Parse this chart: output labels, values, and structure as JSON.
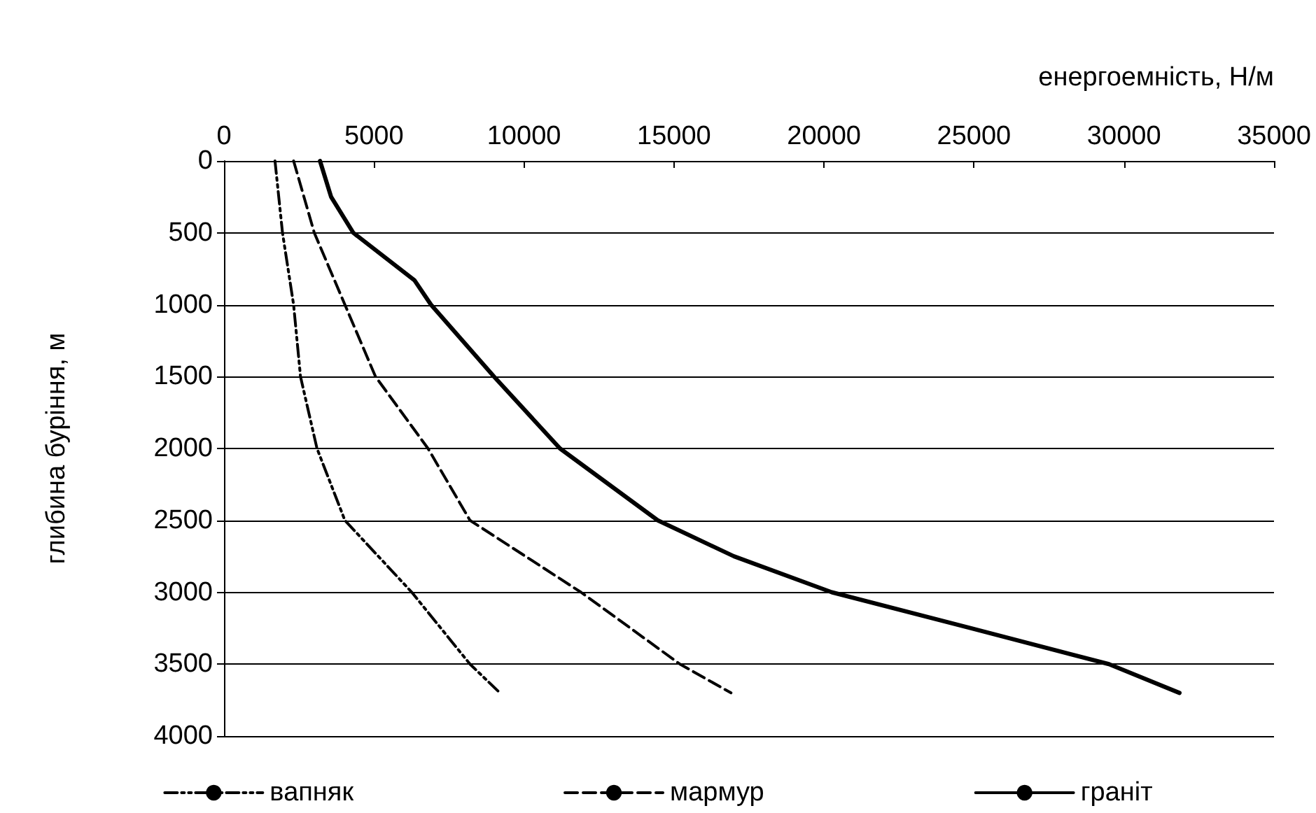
{
  "chart_data": {
    "type": "line",
    "xlabel": "енергоемність, Н/м",
    "ylabel": "глибина буріння, м",
    "xlim": [
      0,
      35000
    ],
    "xticks": [
      0,
      5000,
      10000,
      15000,
      20000,
      25000,
      30000,
      35000
    ],
    "ylim": [
      4000,
      0
    ],
    "yticks": [
      0,
      500,
      1000,
      1500,
      2000,
      2500,
      3000,
      3500,
      4000
    ],
    "grid": "y",
    "legend": "bottom",
    "marker": "none",
    "series": [
      {
        "name": "вапняк",
        "color": "#000000",
        "line_style": "dotted",
        "x": [
          1700,
          1950,
          2320,
          2550,
          3100,
          4030,
          6260,
          8200,
          9200
        ],
        "values": [
          0,
          500,
          1000,
          1500,
          2000,
          2500,
          3000,
          3500,
          3700
        ]
      },
      {
        "name": "мармур",
        "color": "#000000",
        "line_style": "dashed",
        "x": [
          2320,
          3010,
          4030,
          5050,
          6800,
          8200,
          11900,
          15200,
          16900
        ],
        "values": [
          0,
          500,
          1000,
          1500,
          2000,
          2500,
          3000,
          3500,
          3700
        ]
      },
      {
        "name": "граніт",
        "color": "#000000",
        "line_style": "solid",
        "x": [
          3200,
          3570,
          4310,
          6350,
          6900,
          9000,
          11200,
          14460,
          17000,
          20260,
          24900,
          29500,
          31850
        ],
        "values": [
          0,
          250,
          500,
          830,
          1000,
          1500,
          2000,
          2500,
          2750,
          3000,
          3250,
          3500,
          3700
        ]
      }
    ]
  }
}
